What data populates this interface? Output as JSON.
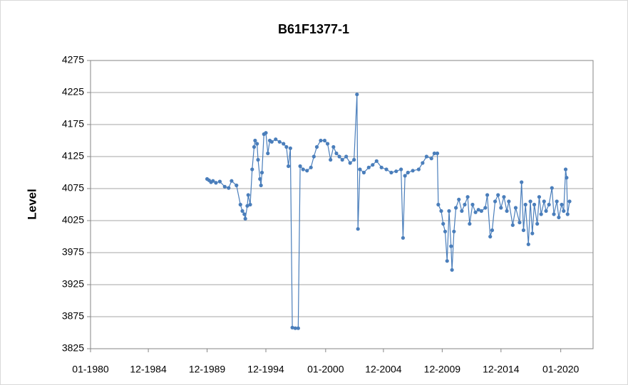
{
  "chart_data": {
    "type": "line",
    "title": "B61F1377-1",
    "y_label": "Level",
    "x": [
      "1989-12",
      "1990-02",
      "1990-04",
      "1990-06",
      "1990-09",
      "1991-01",
      "1991-06",
      "1991-10",
      "1992-01",
      "1992-06",
      "1992-10",
      "1992-12",
      "1993-02",
      "1993-03",
      "1993-05",
      "1993-06",
      "1993-08",
      "1993-10",
      "1993-12",
      "1994-01",
      "1994-03",
      "1994-04",
      "1994-06",
      "1994-07",
      "1994-08",
      "1994-10",
      "1994-12",
      "1995-02",
      "1995-04",
      "1995-06",
      "1995-10",
      "1996-02",
      "1996-06",
      "1996-09",
      "1996-11",
      "1997-01",
      "1997-03",
      "1997-06",
      "1997-09",
      "1997-11",
      "1998-02",
      "1998-06",
      "1998-10",
      "1999-01",
      "1999-04",
      "1999-08",
      "1999-12",
      "2000-03",
      "2000-06",
      "2000-09",
      "2000-12",
      "2001-03",
      "2001-06",
      "2001-10",
      "2002-02",
      "2002-06",
      "2002-09",
      "2002-10",
      "2002-12",
      "2003-04",
      "2003-09",
      "2004-01",
      "2004-05",
      "2004-10",
      "2005-03",
      "2005-08",
      "2006-01",
      "2006-06",
      "2006-08",
      "2006-10",
      "2007-01",
      "2007-06",
      "2007-12",
      "2008-04",
      "2008-08",
      "2009-01",
      "2009-04",
      "2009-07",
      "2009-08",
      "2009-11",
      "2010-01",
      "2010-03",
      "2010-05",
      "2010-07",
      "2010-09",
      "2010-10",
      "2010-12",
      "2011-02",
      "2011-05",
      "2011-08",
      "2011-11",
      "2012-02",
      "2012-04",
      "2012-07",
      "2012-10",
      "2013-01",
      "2013-04",
      "2013-08",
      "2013-10",
      "2014-01",
      "2014-03",
      "2014-06",
      "2014-09",
      "2014-12",
      "2015-03",
      "2015-06",
      "2015-08",
      "2015-12",
      "2016-03",
      "2016-07",
      "2016-09",
      "2016-11",
      "2017-01",
      "2017-04",
      "2017-06",
      "2017-08",
      "2017-10",
      "2018-01",
      "2018-03",
      "2018-05",
      "2018-08",
      "2018-10",
      "2019-01",
      "2019-04",
      "2019-06",
      "2019-09",
      "2019-11",
      "2020-02",
      "2020-04",
      "2020-06",
      "2020-07",
      "2020-08",
      "2020-10"
    ],
    "series": [
      {
        "name": "Level",
        "color": "#4a7ebb",
        "values": [
          4090,
          4088,
          4085,
          4087,
          4084,
          4086,
          4078,
          4076,
          4087,
          4080,
          4050,
          4040,
          4035,
          4028,
          4048,
          4065,
          4050,
          4105,
          4140,
          4150,
          4145,
          4120,
          4090,
          4080,
          4100,
          4160,
          4162,
          4130,
          4150,
          4148,
          4152,
          4148,
          4145,
          4140,
          4110,
          4138,
          3858,
          3857,
          3857,
          4110,
          4105,
          4103,
          4108,
          4125,
          4140,
          4150,
          4150,
          4145,
          4120,
          4140,
          4130,
          4125,
          4120,
          4125,
          4115,
          4120,
          4222,
          4012,
          4105,
          4100,
          4108,
          4112,
          4118,
          4108,
          4105,
          4100,
          4102,
          4105,
          3998,
          4095,
          4100,
          4103,
          4105,
          4115,
          4125,
          4122,
          4130,
          4130,
          4050,
          4040,
          4020,
          4008,
          3962,
          4040,
          3985,
          3948,
          4008,
          4045,
          4058,
          4040,
          4050,
          4062,
          4020,
          4050,
          4038,
          4042,
          4040,
          4045,
          4065,
          4000,
          4010,
          4055,
          4065,
          4045,
          4062,
          4040,
          4055,
          4018,
          4045,
          4022,
          4085,
          4010,
          4050,
          3988,
          4055,
          4005,
          4050,
          4020,
          4062,
          4035,
          4055,
          4040,
          4050,
          4076,
          4035,
          4055,
          4030,
          4050,
          4040,
          4105,
          4092,
          4035,
          4055
        ]
      }
    ],
    "xlim": [
      "1980-01",
      "2022-10"
    ],
    "xticks": [
      {
        "value": "1980-01",
        "label": "01-1980"
      },
      {
        "value": "1984-12",
        "label": "12-1984"
      },
      {
        "value": "1989-12",
        "label": "12-1989"
      },
      {
        "value": "1994-12",
        "label": "12-1994"
      },
      {
        "value": "2000-01",
        "label": "01-2000"
      },
      {
        "value": "2004-12",
        "label": "12-2004"
      },
      {
        "value": "2009-12",
        "label": "12-2009"
      },
      {
        "value": "2014-12",
        "label": "12-2014"
      },
      {
        "value": "2020-01",
        "label": "01-2020"
      }
    ],
    "ylim": [
      3825,
      4275
    ],
    "yticks": [
      3825,
      3875,
      3925,
      3975,
      4025,
      4075,
      4125,
      4175,
      4225,
      4275
    ],
    "grid": true
  }
}
